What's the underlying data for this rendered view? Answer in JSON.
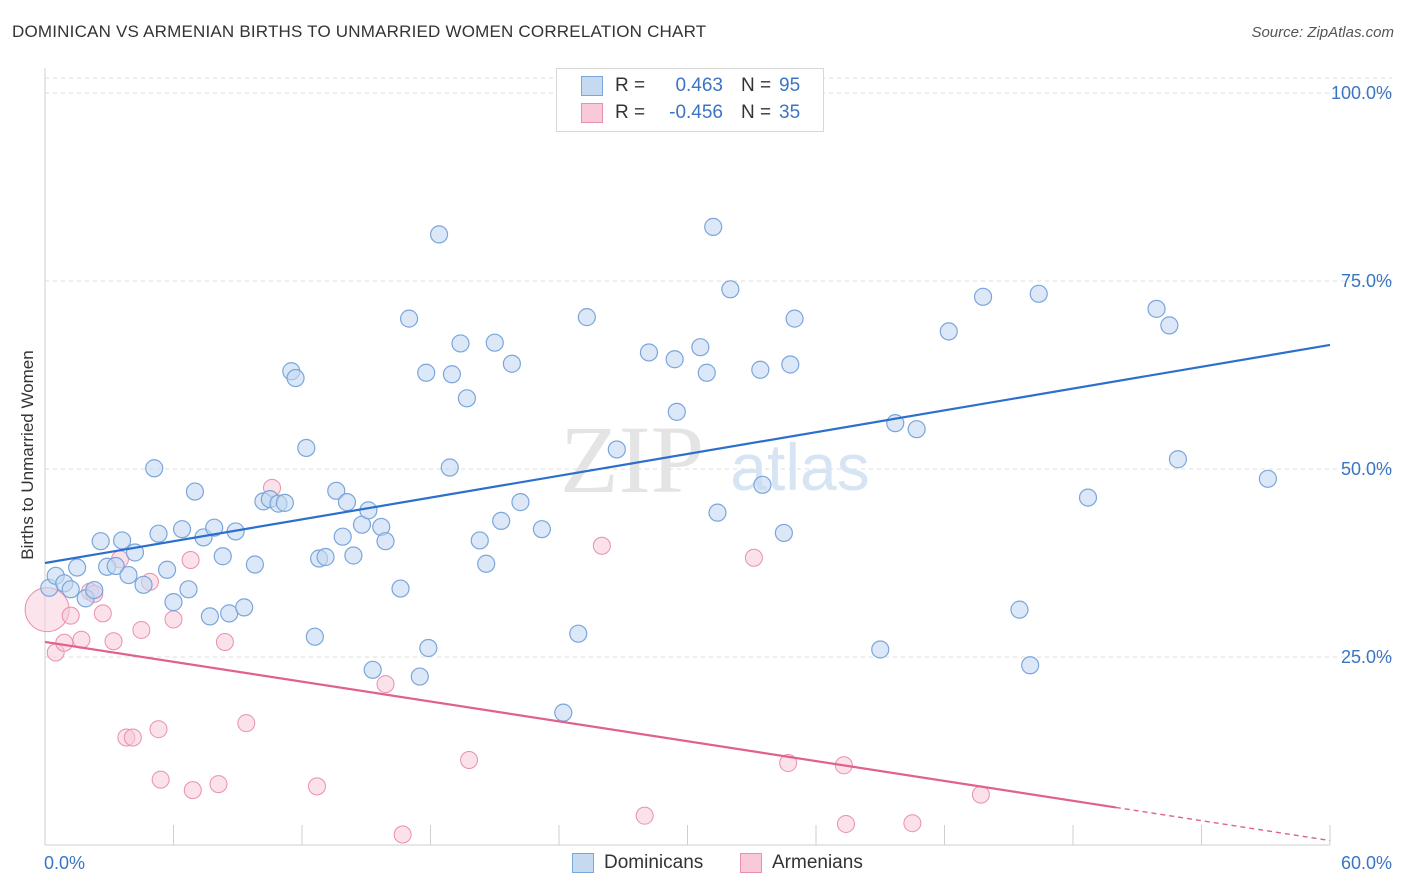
{
  "header": {
    "title": "DOMINICAN VS ARMENIAN BIRTHS TO UNMARRIED WOMEN CORRELATION CHART",
    "source": "Source: ZipAtlas.com"
  },
  "legend": {
    "rows": [
      {
        "r_label": "R =",
        "r_value": "0.463",
        "n_label": "N =",
        "n_value": "95"
      },
      {
        "r_label": "R =",
        "r_value": "-0.456",
        "n_label": "N =",
        "n_value": "35"
      }
    ]
  },
  "bottom_legend": {
    "items": [
      {
        "label": "Dominicans"
      },
      {
        "label": "Armenians"
      }
    ]
  },
  "watermark": {
    "zip": "ZIP",
    "atlas": "atlas"
  },
  "colors": {
    "blue_fill": "#c5d9f1",
    "blue_stroke": "#7aa6dc",
    "blue_line": "#2c6fcc",
    "pink_fill": "#f8c9d8",
    "pink_stroke": "#e890ae",
    "pink_line": "#e0608e",
    "tick_text": "#3a75c4",
    "grid": "#dcdcdc"
  },
  "chart_data": {
    "type": "scatter",
    "title": "DOMINICAN VS ARMENIAN BIRTHS TO UNMARRIED WOMEN CORRELATION CHART",
    "xlabel": "",
    "ylabel": "Births to Unmarried Women",
    "xlim": [
      0,
      60
    ],
    "ylim": [
      0,
      102
    ],
    "x_tick_labels": [
      "0.0%",
      "60.0%"
    ],
    "y_ticks": [
      25,
      50,
      75,
      100
    ],
    "y_tick_labels": [
      "25.0%",
      "50.0%",
      "75.0%",
      "100.0%"
    ],
    "grid": "horizontal dashed",
    "legend_position": "top-center",
    "series": [
      {
        "name": "Dominicans",
        "r": 0.463,
        "n": 95,
        "trendline": {
          "x": [
            0,
            60
          ],
          "y": [
            37.5,
            66.5
          ]
        },
        "points": [
          [
            0.2,
            34.2
          ],
          [
            0.5,
            35.8
          ],
          [
            0.9,
            34.8
          ],
          [
            1.2,
            34.0
          ],
          [
            1.5,
            36.9
          ],
          [
            1.9,
            32.8
          ],
          [
            2.3,
            33.9
          ],
          [
            2.6,
            40.4
          ],
          [
            2.9,
            37.0
          ],
          [
            3.3,
            37.1
          ],
          [
            3.6,
            40.5
          ],
          [
            3.9,
            35.9
          ],
          [
            4.2,
            38.9
          ],
          [
            4.6,
            34.6
          ],
          [
            5.1,
            50.1
          ],
          [
            5.3,
            41.4
          ],
          [
            5.7,
            36.6
          ],
          [
            6.0,
            32.3
          ],
          [
            6.4,
            42.0
          ],
          [
            6.7,
            34.0
          ],
          [
            7.0,
            47.0
          ],
          [
            7.4,
            40.9
          ],
          [
            7.7,
            30.4
          ],
          [
            7.9,
            42.2
          ],
          [
            8.3,
            38.4
          ],
          [
            8.6,
            30.8
          ],
          [
            8.9,
            41.7
          ],
          [
            9.3,
            31.6
          ],
          [
            9.8,
            37.3
          ],
          [
            10.2,
            45.7
          ],
          [
            10.5,
            46.0
          ],
          [
            10.9,
            45.4
          ],
          [
            11.2,
            45.5
          ],
          [
            11.5,
            63.0
          ],
          [
            11.7,
            62.1
          ],
          [
            12.2,
            52.8
          ],
          [
            12.6,
            27.7
          ],
          [
            12.8,
            38.1
          ],
          [
            13.1,
            38.3
          ],
          [
            13.6,
            47.1
          ],
          [
            13.9,
            41.0
          ],
          [
            14.1,
            45.6
          ],
          [
            14.4,
            38.5
          ],
          [
            14.8,
            42.6
          ],
          [
            15.1,
            44.5
          ],
          [
            15.3,
            23.3
          ],
          [
            15.7,
            42.3
          ],
          [
            15.9,
            40.4
          ],
          [
            16.6,
            34.1
          ],
          [
            17.0,
            70.0
          ],
          [
            17.5,
            22.4
          ],
          [
            17.8,
            62.8
          ],
          [
            17.9,
            26.2
          ],
          [
            18.4,
            81.2
          ],
          [
            18.9,
            50.2
          ],
          [
            19.0,
            62.6
          ],
          [
            19.4,
            66.7
          ],
          [
            19.7,
            59.4
          ],
          [
            20.3,
            40.5
          ],
          [
            20.6,
            37.4
          ],
          [
            21.0,
            66.8
          ],
          [
            21.3,
            43.1
          ],
          [
            21.8,
            64.0
          ],
          [
            22.2,
            45.6
          ],
          [
            23.2,
            42.0
          ],
          [
            24.2,
            17.6
          ],
          [
            24.9,
            28.1
          ],
          [
            25.3,
            70.2
          ],
          [
            26.7,
            52.6
          ],
          [
            28.2,
            65.5
          ],
          [
            29.4,
            64.6
          ],
          [
            29.5,
            57.6
          ],
          [
            30.6,
            66.2
          ],
          [
            30.9,
            62.8
          ],
          [
            31.2,
            82.2
          ],
          [
            31.4,
            44.2
          ],
          [
            32.0,
            73.9
          ],
          [
            33.4,
            63.2
          ],
          [
            33.5,
            47.9
          ],
          [
            34.5,
            41.5
          ],
          [
            34.8,
            63.9
          ],
          [
            35.0,
            70.0
          ],
          [
            39.0,
            26.0
          ],
          [
            39.7,
            56.1
          ],
          [
            40.7,
            55.3
          ],
          [
            42.2,
            68.3
          ],
          [
            43.8,
            72.9
          ],
          [
            45.5,
            31.3
          ],
          [
            46.0,
            23.9
          ],
          [
            46.4,
            73.3
          ],
          [
            48.7,
            46.2
          ],
          [
            51.9,
            71.3
          ],
          [
            52.5,
            69.1
          ],
          [
            52.9,
            51.3
          ],
          [
            57.1,
            48.7
          ]
        ]
      },
      {
        "name": "Armenians",
        "r": -0.456,
        "n": 35,
        "trendline": {
          "x": [
            0,
            50
          ],
          "y": [
            27.0,
            5.0
          ]
        },
        "trendline_dashed_extension": {
          "x": [
            50,
            60
          ],
          "y": [
            5.0,
            0.6
          ]
        },
        "points": [
          [
            0.1,
            31.3
          ],
          [
            0.5,
            25.6
          ],
          [
            0.9,
            26.9
          ],
          [
            1.2,
            30.5
          ],
          [
            1.7,
            27.3
          ],
          [
            2.1,
            33.7
          ],
          [
            2.3,
            33.4
          ],
          [
            2.7,
            30.8
          ],
          [
            3.2,
            27.1
          ],
          [
            3.5,
            38.0
          ],
          [
            3.8,
            14.3
          ],
          [
            4.1,
            14.3
          ],
          [
            4.5,
            28.6
          ],
          [
            4.9,
            35.0
          ],
          [
            5.3,
            15.4
          ],
          [
            5.4,
            8.7
          ],
          [
            6.0,
            30.0
          ],
          [
            6.8,
            37.9
          ],
          [
            6.9,
            7.3
          ],
          [
            8.1,
            8.1
          ],
          [
            8.4,
            27.0
          ],
          [
            9.4,
            16.2
          ],
          [
            10.6,
            47.5
          ],
          [
            12.7,
            7.8
          ],
          [
            15.9,
            21.4
          ],
          [
            16.7,
            1.4
          ],
          [
            19.8,
            11.3
          ],
          [
            26.0,
            39.8
          ],
          [
            28.0,
            3.9
          ],
          [
            33.1,
            38.2
          ],
          [
            34.7,
            10.9
          ],
          [
            37.3,
            10.6
          ],
          [
            37.4,
            2.8
          ],
          [
            40.5,
            2.9
          ],
          [
            43.7,
            6.7
          ]
        ]
      }
    ]
  }
}
